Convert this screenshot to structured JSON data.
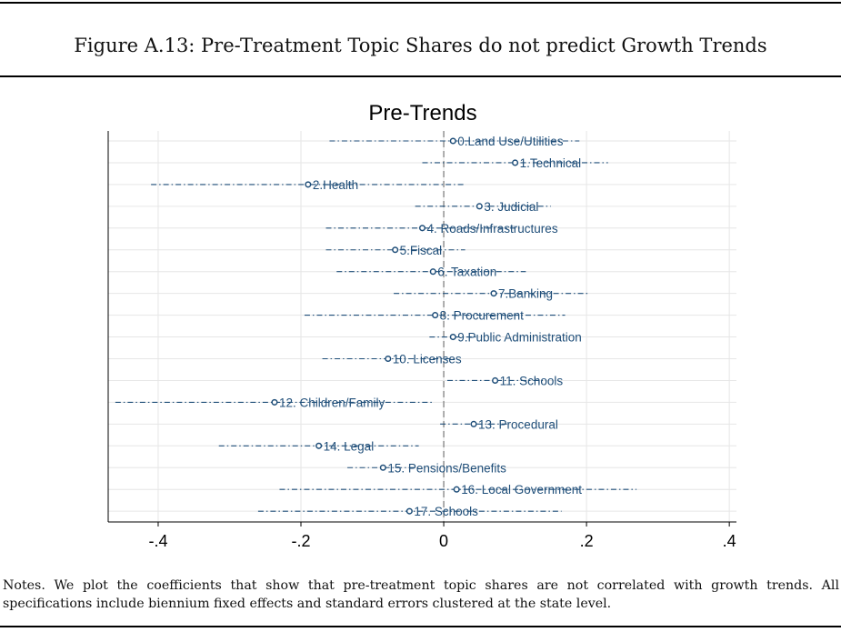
{
  "figure_title": "Figure A.13: Pre-Treatment Topic Shares do not predict Growth Trends",
  "notes": "Notes. We plot the coefficients that show that pre-treatment topic shares are not correlated with growth trends. All specifications include biennium fixed effects and standard errors clustered at the state level.",
  "colors": {
    "marker": "#1f4e79",
    "label": "#1f4e79",
    "zero_line": "#8a8a8a",
    "grid": "#e6e6e6"
  },
  "chart_data": {
    "type": "scatter",
    "title": "Pre-Trends",
    "xlabel": "",
    "ylabel": "",
    "xlim": [
      -0.47,
      0.41
    ],
    "x_ticks": [
      -0.4,
      -0.2,
      0,
      0.2,
      0.4
    ],
    "x_tick_labels": [
      "-.4",
      "-.2",
      "0",
      ".2",
      ".4"
    ],
    "grid": true,
    "reference_line": 0,
    "points": [
      {
        "label": "0.Land Use/Utilities",
        "estimate": 0.013,
        "ci_low": -0.16,
        "ci_high": 0.19
      },
      {
        "label": "1.Technical",
        "estimate": 0.1,
        "ci_low": -0.03,
        "ci_high": 0.23
      },
      {
        "label": "2.Health",
        "estimate": -0.19,
        "ci_low": -0.41,
        "ci_high": 0.03
      },
      {
        "label": "3. Judicial",
        "estimate": 0.05,
        "ci_low": -0.04,
        "ci_high": 0.15
      },
      {
        "label": "4. Roads/Infrastructures",
        "estimate": -0.03,
        "ci_low": -0.165,
        "ci_high": 0.11
      },
      {
        "label": "5.Fiscal",
        "estimate": -0.068,
        "ci_low": -0.165,
        "ci_high": 0.03
      },
      {
        "label": "6. Taxation",
        "estimate": -0.015,
        "ci_low": -0.15,
        "ci_high": 0.115
      },
      {
        "label": "7.Banking",
        "estimate": 0.07,
        "ci_low": -0.07,
        "ci_high": 0.205
      },
      {
        "label": "8. Procurement",
        "estimate": -0.012,
        "ci_low": -0.195,
        "ci_high": 0.17
      },
      {
        "label": "9.Public Administration",
        "estimate": 0.013,
        "ci_low": -0.02,
        "ci_high": 0.045
      },
      {
        "label": "10. Licenses",
        "estimate": -0.078,
        "ci_low": -0.17,
        "ci_high": 0.015
      },
      {
        "label": "11. Schools",
        "estimate": 0.072,
        "ci_low": 0.005,
        "ci_high": 0.14
      },
      {
        "label": "12. Children/Family",
        "estimate": -0.237,
        "ci_low": -0.46,
        "ci_high": -0.015
      },
      {
        "label": "13. Procedural",
        "estimate": 0.042,
        "ci_low": -0.005,
        "ci_high": 0.09
      },
      {
        "label": "14. Legal",
        "estimate": -0.175,
        "ci_low": -0.315,
        "ci_high": -0.035
      },
      {
        "label": "15. Pensions/Benefits",
        "estimate": -0.085,
        "ci_low": -0.135,
        "ci_high": -0.035
      },
      {
        "label": "16. Local Government",
        "estimate": 0.018,
        "ci_low": -0.23,
        "ci_high": 0.27
      },
      {
        "label": "17. Schools",
        "estimate": -0.048,
        "ci_low": -0.26,
        "ci_high": 0.165
      }
    ]
  }
}
